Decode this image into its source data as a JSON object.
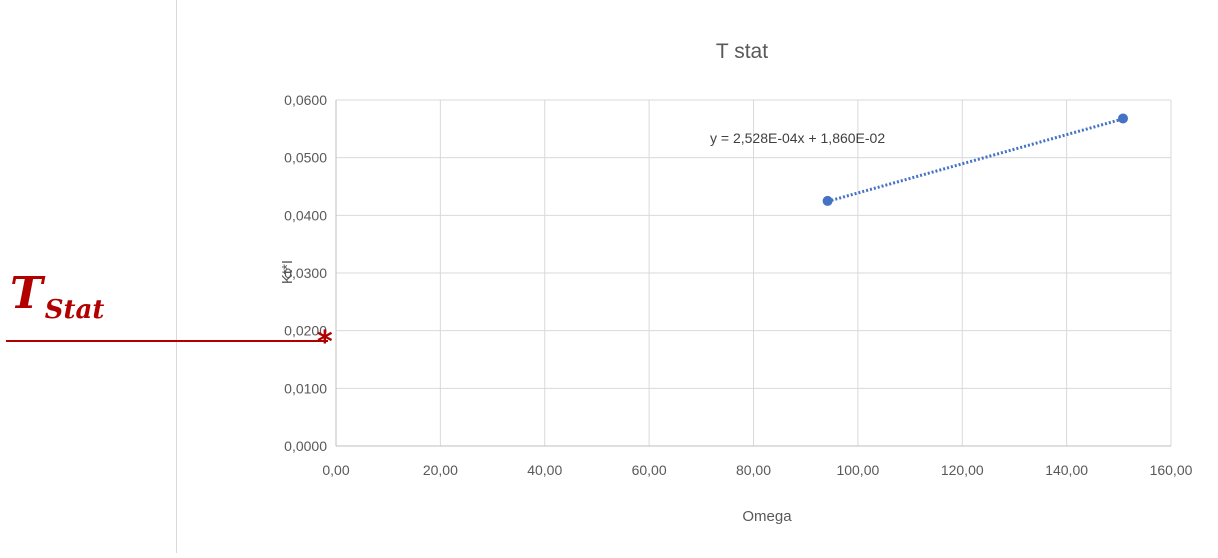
{
  "chart_data": {
    "type": "scatter",
    "title": "T stat",
    "xlabel": "Omega",
    "ylabel": "Kt*I",
    "xlim": [
      0,
      160
    ],
    "ylim": [
      0,
      0.06
    ],
    "x_ticks": [
      "0,00",
      "20,00",
      "40,00",
      "60,00",
      "80,00",
      "100,00",
      "120,00",
      "140,00",
      "160,00"
    ],
    "y_ticks": [
      "0,0000",
      "0,0100",
      "0,0200",
      "0,0300",
      "0,0400",
      "0,0500",
      "0,0600"
    ],
    "x_tick_values": [
      0,
      20,
      40,
      60,
      80,
      100,
      120,
      140,
      160
    ],
    "y_tick_values": [
      0,
      0.01,
      0.02,
      0.03,
      0.04,
      0.05,
      0.06
    ],
    "series": [
      {
        "x": [
          94.2,
          150.8
        ],
        "y": [
          0.0425,
          0.0568
        ],
        "color": "#4472c4"
      }
    ],
    "trendline": {
      "type": "linear",
      "slope": 0.0002528,
      "intercept": 0.0186,
      "x_range": [
        94.2,
        150.8
      ],
      "equation": "y = 2,528E-04x + 1,860E-02",
      "style": "dotted",
      "color": "#4472c4"
    },
    "grid": true,
    "legend": "none"
  },
  "annotation": {
    "label_main": "T",
    "label_sub": "Stat",
    "marker": "*",
    "color": "#b20000"
  }
}
